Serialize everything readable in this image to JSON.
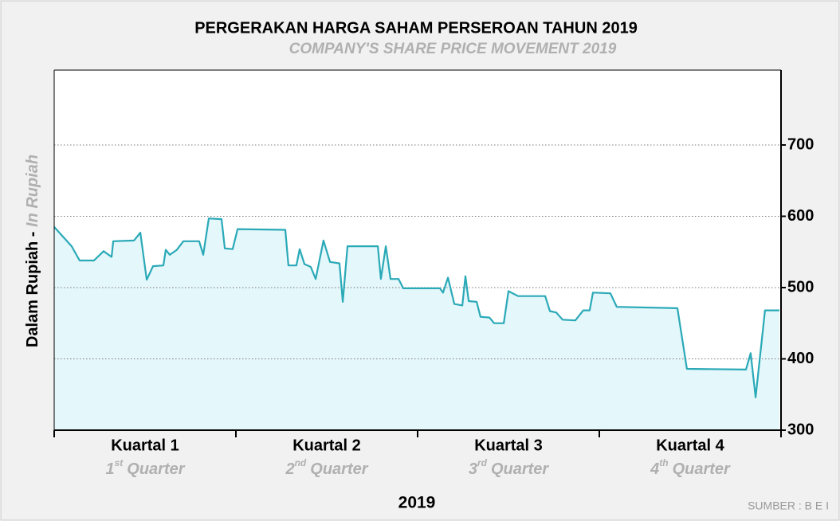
{
  "chart_data": {
    "type": "line",
    "title": "PERGERAKAN HARGA SAHAM PERSEROAN TAHUN 2019",
    "subtitle": "COMPANY'S SHARE PRICE MOVEMENT 2019",
    "y_label": {
      "main": "Dalam Rupiah - ",
      "english": "In Rupiah"
    },
    "x_label": "2019",
    "source": "SUMBER : B E I",
    "quarters": [
      {
        "name": "Kuartal 1",
        "number": "1",
        "ordinal": "st",
        "english": "Quarter"
      },
      {
        "name": "Kuartal 2",
        "number": "2",
        "ordinal": "nd",
        "english": "Quarter"
      },
      {
        "name": "Kuartal 3",
        "number": "3",
        "ordinal": "rd",
        "english": "Quarter"
      },
      {
        "name": "Kuartal 4",
        "number": "4",
        "ordinal": "th",
        "english": "Quarter"
      }
    ],
    "xlim": [
      0,
      4
    ],
    "ylim": [
      300,
      805
    ],
    "yticks": [
      300,
      400,
      500,
      600,
      700
    ],
    "grid": true,
    "color": "#2aa9b7",
    "fill_color": "#e4f7fb",
    "x": [
      0,
      0.096,
      0.14,
      0.219,
      0.272,
      0.316,
      0.325,
      0.439,
      0.474,
      0.509,
      0.544,
      0.601,
      0.614,
      0.636,
      0.675,
      0.711,
      0.798,
      0.82,
      0.851,
      0.921,
      0.939,
      0.982,
      1.009,
      1.272,
      1.289,
      1.333,
      1.351,
      1.377,
      1.412,
      1.439,
      1.482,
      1.518,
      1.57,
      1.588,
      1.614,
      1.781,
      1.798,
      1.825,
      1.851,
      1.895,
      1.921,
      2.123,
      2.14,
      2.167,
      2.202,
      2.246,
      2.263,
      2.281,
      2.325,
      2.346,
      2.395,
      2.421,
      2.474,
      2.5,
      2.553,
      2.702,
      2.728,
      2.763,
      2.798,
      2.868,
      2.912,
      2.947,
      2.965,
      3.061,
      3.096,
      3.43,
      3.482,
      3.807,
      3.833,
      3.86,
      3.912,
      3.991
    ],
    "values": [
      585,
      558,
      538,
      538,
      551,
      543,
      565,
      566,
      577,
      511,
      530,
      531,
      553,
      546,
      553,
      565,
      565,
      546,
      597,
      596,
      555,
      554,
      582,
      581,
      531,
      531,
      554,
      533,
      529,
      512,
      566,
      536,
      534,
      480,
      558,
      558,
      512,
      558,
      512,
      512,
      499,
      499,
      493,
      514,
      477,
      475,
      516,
      481,
      480,
      459,
      458,
      450,
      450,
      495,
      488,
      488,
      467,
      465,
      455,
      454,
      468,
      468,
      493,
      492,
      473,
      471,
      386,
      385,
      408,
      346,
      468,
      468
    ]
  }
}
